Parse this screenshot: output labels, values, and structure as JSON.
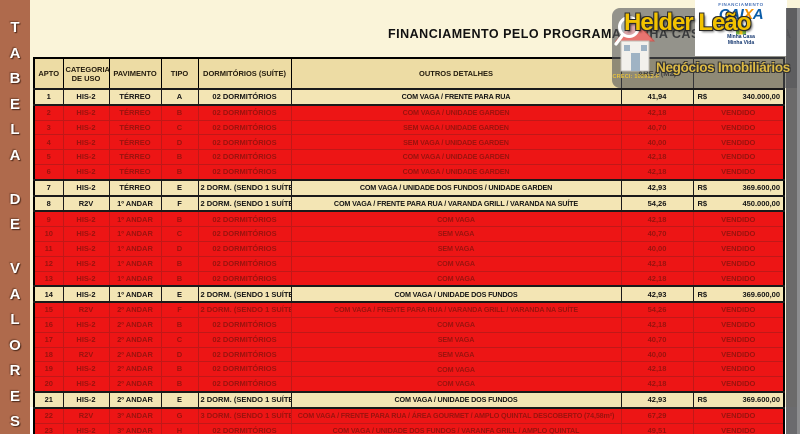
{
  "sidebar": {
    "vertical_text": "TABELA DE VALORES"
  },
  "title": "FINANCIAMENTO PELO PROGRAMA MINHA CASA MINHA VIDA",
  "watermark": {
    "financing_label": "FINANCIAMENTO",
    "bank_name": "CAIXA",
    "program_line1": "Minha Casa",
    "program_line2": "Minha Vida",
    "agent_name": "Helder Leão",
    "agent_subtitle": "Negócios Imobiliários",
    "creci": "CRECI: 102912-F"
  },
  "colors": {
    "sidebar_bg": "#AF6A4C",
    "page_bg": "#FAF4D9",
    "header_bg": "#EDDCA4",
    "available_row_bg": "#F3E5B4",
    "sold_row_bg": "#ED1515",
    "sold_text": "#9A130E",
    "watermark_gray": "#56575A",
    "agent_gold": "#F2C200",
    "caixa_blue": "#0A5CA8",
    "caixa_orange": "#F29100"
  },
  "table": {
    "columns": [
      "APTO",
      "CATEGORIA DE USO",
      "PAVIMENTO",
      "TIPO",
      "DORMITÓRIOS (SUÍTE)",
      "OUTROS DETALHES",
      "ÁREA (M2)",
      ""
    ],
    "currency": "R$",
    "sold_label": "VENDIDO",
    "rows": [
      {
        "apto": "1",
        "categoria": "HIS-2",
        "pavimento": "TÉRREO",
        "tipo": "A",
        "dormitorios": "02 DORMITÓRIOS",
        "detalhes": "COM VAGA / FRENTE PARA RUA",
        "area": "41,94",
        "valor": "340.000,00",
        "sold": false
      },
      {
        "apto": "2",
        "categoria": "HIS-2",
        "pavimento": "TÉRREO",
        "tipo": "B",
        "dormitorios": "02 DORMITÓRIOS",
        "detalhes": "COM VAGA / UNIDADE GARDEN",
        "area": "42,18",
        "valor": null,
        "sold": true
      },
      {
        "apto": "3",
        "categoria": "HIS-2",
        "pavimento": "TÉRREO",
        "tipo": "C",
        "dormitorios": "02 DORMITÓRIOS",
        "detalhes": "SEM VAGA / UNIDADE GARDEN",
        "area": "40,70",
        "valor": null,
        "sold": true
      },
      {
        "apto": "4",
        "categoria": "HIS-2",
        "pavimento": "TÉRREO",
        "tipo": "D",
        "dormitorios": "02 DORMITÓRIOS",
        "detalhes": "SEM VAGA / UNIDADE GARDEN",
        "area": "40,00",
        "valor": null,
        "sold": true
      },
      {
        "apto": "5",
        "categoria": "HIS-2",
        "pavimento": "TÉRREO",
        "tipo": "B",
        "dormitorios": "02 DORMITÓRIOS",
        "detalhes": "COM VAGA / UNIDADE GARDEN",
        "area": "42,18",
        "valor": null,
        "sold": true
      },
      {
        "apto": "6",
        "categoria": "HIS-2",
        "pavimento": "TÉRREO",
        "tipo": "B",
        "dormitorios": "02 DORMITÓRIOS",
        "detalhes": "COM VAGA / UNIDADE GARDEN",
        "area": "42,18",
        "valor": null,
        "sold": true
      },
      {
        "apto": "7",
        "categoria": "HIS-2",
        "pavimento": "TÉRREO",
        "tipo": "E",
        "dormitorios": "2 DORM. (SENDO 1 SUÍTE)",
        "detalhes": "COM VAGA / UNIDADE DOS FUNDOS / UNIDADE GARDEN",
        "area": "42,93",
        "valor": "369.600,00",
        "sold": false
      },
      {
        "apto": "8",
        "categoria": "R2V",
        "pavimento": "1º ANDAR",
        "tipo": "F",
        "dormitorios": "2 DORM. (SENDO 1 SUÍTE)",
        "detalhes": "COM VAGA / FRENTE PARA RUA / VARANDA GRILL / VARANDA NA SUÍTE",
        "area": "54,26",
        "valor": "450.000,00",
        "sold": false
      },
      {
        "apto": "9",
        "categoria": "HIS-2",
        "pavimento": "1º ANDAR",
        "tipo": "B",
        "dormitorios": "02 DORMITÓRIOS",
        "detalhes": "COM VAGA",
        "area": "42,18",
        "valor": null,
        "sold": true
      },
      {
        "apto": "10",
        "categoria": "HIS-2",
        "pavimento": "1º ANDAR",
        "tipo": "C",
        "dormitorios": "02 DORMITÓRIOS",
        "detalhes": "SEM VAGA",
        "area": "40,70",
        "valor": null,
        "sold": true
      },
      {
        "apto": "11",
        "categoria": "HIS-2",
        "pavimento": "1º ANDAR",
        "tipo": "D",
        "dormitorios": "02 DORMITÓRIOS",
        "detalhes": "SEM VAGA",
        "area": "40,00",
        "valor": null,
        "sold": true
      },
      {
        "apto": "12",
        "categoria": "HIS-2",
        "pavimento": "1º ANDAR",
        "tipo": "B",
        "dormitorios": "02 DORMITÓRIOS",
        "detalhes": "COM VAGA",
        "area": "42,18",
        "valor": null,
        "sold": true
      },
      {
        "apto": "13",
        "categoria": "HIS-2",
        "pavimento": "1º ANDAR",
        "tipo": "B",
        "dormitorios": "02 DORMITÓRIOS",
        "detalhes": "COM VAGA",
        "area": "42,18",
        "valor": null,
        "sold": true
      },
      {
        "apto": "14",
        "categoria": "HIS-2",
        "pavimento": "1º ANDAR",
        "tipo": "E",
        "dormitorios": "2 DORM. (SENDO 1 SUÍTE)",
        "detalhes": "COM VAGA / UNIDADE DOS FUNDOS",
        "area": "42,93",
        "valor": "369.600,00",
        "sold": false
      },
      {
        "apto": "15",
        "categoria": "R2V",
        "pavimento": "2º ANDAR",
        "tipo": "F",
        "dormitorios": "2 DORM. (SENDO 1 SUÍTE)",
        "detalhes": "COM VAGA / FRENTE PARA RUA / VARANDA GRILL / VARANDA NA SUÍTE",
        "area": "54,26",
        "valor": null,
        "sold": true
      },
      {
        "apto": "16",
        "categoria": "HIS-2",
        "pavimento": "2º ANDAR",
        "tipo": "B",
        "dormitorios": "02 DORMITÓRIOS",
        "detalhes": "COM VAGA",
        "area": "42,18",
        "valor": null,
        "sold": true
      },
      {
        "apto": "17",
        "categoria": "HIS-2",
        "pavimento": "2º ANDAR",
        "tipo": "C",
        "dormitorios": "02 DORMITÓRIOS",
        "detalhes": "SEM VAGA",
        "area": "40,70",
        "valor": null,
        "sold": true
      },
      {
        "apto": "18",
        "categoria": "R2V",
        "pavimento": "2º ANDAR",
        "tipo": "D",
        "dormitorios": "02 DORMITÓRIOS",
        "detalhes": "SEM VAGA",
        "area": "40,00",
        "valor": null,
        "sold": true
      },
      {
        "apto": "19",
        "categoria": "HIS-2",
        "pavimento": "2º ANDAR",
        "tipo": "B",
        "dormitorios": "02 DORMITÓRIOS",
        "detalhes": "COM VAGA",
        "area": "42,18",
        "valor": null,
        "sold": true
      },
      {
        "apto": "20",
        "categoria": "HIS-2",
        "pavimento": "2º ANDAR",
        "tipo": "B",
        "dormitorios": "02 DORMITÓRIOS",
        "detalhes": "COM VAGA",
        "area": "42,18",
        "valor": null,
        "sold": true
      },
      {
        "apto": "21",
        "categoria": "HIS-2",
        "pavimento": "2º ANDAR",
        "tipo": "E",
        "dormitorios": "2 DORM. (SENDO 1 SUÍTE)",
        "detalhes": "COM VAGA / UNIDADE DOS FUNDOS",
        "area": "42,93",
        "valor": "369.600,00",
        "sold": false
      },
      {
        "apto": "22",
        "categoria": "R2V",
        "pavimento": "3º ANDAR",
        "tipo": "G",
        "dormitorios": "3 DORM. (SENDO 1 SUÍTE)",
        "detalhes": "COM VAGA / FRENTE PARA RUA / ÁREA GOURMET / AMPLO QUINTAL DESCOBERTO (74,58m²)",
        "area": "67,29",
        "valor": null,
        "sold": true
      },
      {
        "apto": "23",
        "categoria": "HIS-2",
        "pavimento": "3º ANDAR",
        "tipo": "H",
        "dormitorios": "02 DORMITÓRIOS",
        "detalhes": "COM VAGA / UNIDADE DOS FUNDOS / VARANFA GRILL / AMPLO QUINTAL",
        "area": "49,51",
        "valor": null,
        "sold": true
      }
    ]
  }
}
